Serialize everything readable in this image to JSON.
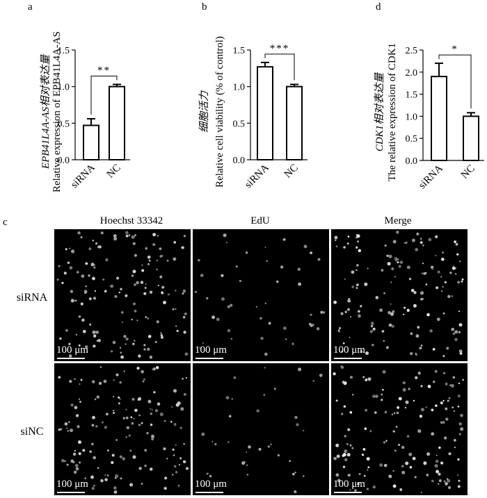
{
  "panel_letters": {
    "a": "a",
    "b": "b",
    "c": "c",
    "d": "d"
  },
  "chart_data": [
    {
      "panel": "a",
      "type": "bar",
      "categories": [
        "siRNA",
        "NC"
      ],
      "values": [
        0.47,
        1.0
      ],
      "errors": [
        0.09,
        0.03
      ],
      "ylabel_cn": "EPB41L4A-AS相对表达量",
      "ylabel_en": "Relative expression of EPB41L4A-AS",
      "ylim": [
        0,
        1.5
      ],
      "yticks": [
        "0.0",
        "0.5",
        "1.0",
        "1.5"
      ],
      "yvalues": [
        0,
        0.5,
        1.0,
        1.5
      ],
      "significance": "**",
      "grid": false
    },
    {
      "panel": "b",
      "type": "bar",
      "categories": [
        "siRNA",
        "NC"
      ],
      "values": [
        1.27,
        1.0
      ],
      "errors": [
        0.06,
        0.03
      ],
      "ylabel_cn": "细胞活力",
      "ylabel_en": "Relative cell viability (% of control)",
      "ylim": [
        0,
        1.5
      ],
      "yticks": [
        "0.0",
        "0.5",
        "1.0",
        "1.5"
      ],
      "yvalues": [
        0,
        0.5,
        1.0,
        1.5
      ],
      "significance": "***",
      "grid": false
    },
    {
      "panel": "d",
      "type": "bar",
      "categories": [
        "siRNA",
        "NC"
      ],
      "values": [
        1.9,
        1.0
      ],
      "errors": [
        0.3,
        0.08
      ],
      "ylabel_cn": "CDK1相对表达量",
      "ylabel_en": "The relative expression of CDK1",
      "ylim": [
        0,
        2.5
      ],
      "yticks": [
        "0.0",
        "0.5",
        "1.0",
        "1.5",
        "2.0",
        "2.5"
      ],
      "yvalues": [
        0,
        0.5,
        1.0,
        1.5,
        2.0,
        2.5
      ],
      "significance": "*",
      "grid": false
    }
  ],
  "microscopy": {
    "columns": [
      "Hoechst 33342",
      "EdU",
      "Merge"
    ],
    "rows": [
      "siRNA",
      "siNC"
    ],
    "scale_bar": "100 μm"
  }
}
